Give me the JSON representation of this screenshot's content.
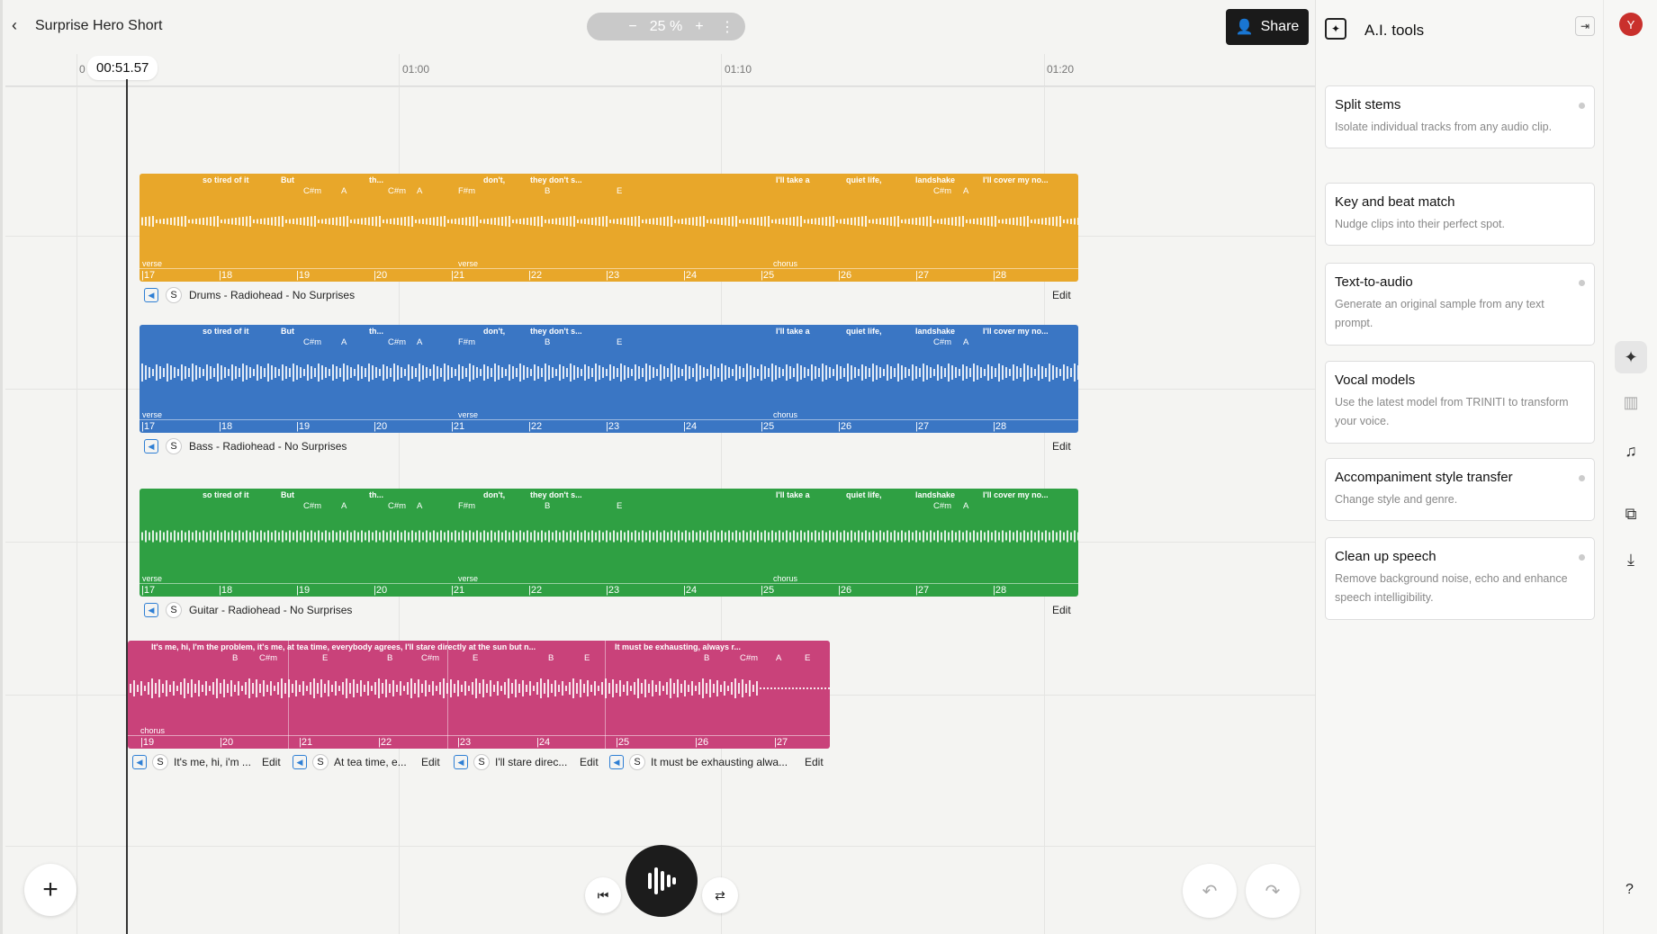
{
  "header": {
    "title": "Surprise Hero Short",
    "zoom": "25 %",
    "share_label": "Share"
  },
  "timeline": {
    "ruler": [
      "0",
      "01:00",
      "01:10",
      "01:20"
    ],
    "current_time": "00:51.57"
  },
  "tracks": [
    {
      "name": "Drums - Radiohead - No Surprises",
      "color": "#e8a72a",
      "edit": "Edit",
      "lyrics": [
        "so tired of it",
        "But",
        "th...",
        "don't,",
        "they don't s...",
        "I'll take a",
        "quiet life,",
        "landshake",
        "I'll cover my no..."
      ],
      "chords": [
        "C#m",
        "A",
        "C#m",
        "A",
        "F#m",
        "B",
        "E",
        "C#m",
        "A"
      ],
      "sections": [
        "verse",
        "verse",
        "chorus"
      ],
      "bars": [
        "17",
        "18",
        "19",
        "20",
        "21",
        "22",
        "23",
        "24",
        "25",
        "26",
        "27",
        "28"
      ]
    },
    {
      "name": "Bass - Radiohead - No Surprises",
      "color": "#3a76c4",
      "edit": "Edit",
      "lyrics": [
        "so tired of it",
        "But",
        "th...",
        "don't,",
        "they don't s...",
        "I'll take a",
        "quiet life,",
        "landshake",
        "I'll cover my no..."
      ],
      "chords": [
        "C#m",
        "A",
        "C#m",
        "A",
        "F#m",
        "B",
        "E",
        "C#m",
        "A"
      ],
      "sections": [
        "verse",
        "verse",
        "chorus"
      ],
      "bars": [
        "17",
        "18",
        "19",
        "20",
        "21",
        "22",
        "23",
        "24",
        "25",
        "26",
        "27",
        "28"
      ]
    },
    {
      "name": "Guitar - Radiohead - No Surprises",
      "color": "#2fa043",
      "edit": "Edit",
      "lyrics": [
        "so tired of it",
        "But",
        "th...",
        "don't,",
        "they don't s...",
        "I'll take a",
        "quiet life,",
        "landshake",
        "I'll cover my no..."
      ],
      "chords": [
        "C#m",
        "A",
        "C#m",
        "A",
        "F#m",
        "B",
        "E",
        "C#m",
        "A"
      ],
      "sections": [
        "verse",
        "verse",
        "chorus"
      ],
      "bars": [
        "17",
        "18",
        "19",
        "20",
        "21",
        "22",
        "23",
        "24",
        "25",
        "26",
        "27",
        "28"
      ]
    }
  ],
  "vocal_track": {
    "color": "#c9427a",
    "lyrics": [
      "It's me, hi, I'm the problem, it's me, at tea time, everybody agrees, I'll stare directly at the sun but n...",
      "It must be exhausting, always r..."
    ],
    "chords": [
      "B",
      "C#m",
      "E",
      "B",
      "C#m",
      "E",
      "B",
      "E",
      "B",
      "C#m",
      "A",
      "E"
    ],
    "section": "chorus",
    "bars": [
      "19",
      "20",
      "21",
      "22",
      "23",
      "24",
      "25",
      "26",
      "27"
    ],
    "clips": [
      {
        "name": "It's me, hi, i'm ...",
        "edit": "Edit"
      },
      {
        "name": "At tea time, e...",
        "edit": "Edit"
      },
      {
        "name": "I'll stare direc...",
        "edit": "Edit"
      },
      {
        "name": "It must be exhausting alwa...",
        "edit": "Edit"
      }
    ]
  },
  "solo_label": "S",
  "panel": {
    "title": "A.I. tools",
    "tools": [
      {
        "title": "Split stems",
        "desc": "Isolate individual tracks from any audio clip."
      },
      {
        "title": "Key and beat match",
        "desc": "Nudge clips into their perfect spot."
      },
      {
        "title": "Text-to-audio",
        "desc": "Generate an original sample from any text prompt."
      },
      {
        "title": "Vocal models",
        "desc": "Use the latest model from TRINITI to transform your voice."
      },
      {
        "title": "Accompaniment style transfer",
        "desc": "Change style and genre."
      },
      {
        "title": "Clean up speech",
        "desc": "Remove background noise, echo and enhance speech intelligibility."
      }
    ]
  },
  "rail": {
    "avatar": "Y",
    "help": "?"
  }
}
